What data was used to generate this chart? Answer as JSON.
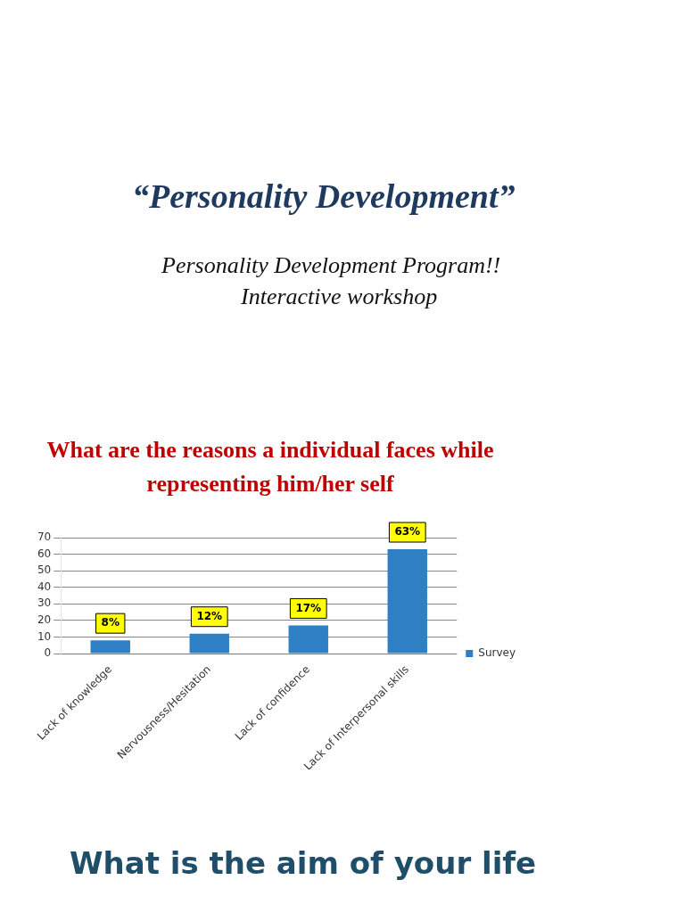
{
  "chart_data": {
    "type": "bar",
    "title": "What are the reasons a individual faces while representing him/her self",
    "categories": [
      "Lack of knowledge",
      "Nervousness/Hesitation",
      "Lack of confidence",
      "Lack of Interpersonal skills"
    ],
    "series": [
      {
        "name": "Survey",
        "color": "#2e7fc3",
        "values": [
          8,
          12,
          17,
          63
        ]
      }
    ],
    "value_labels": [
      "8%",
      "12%",
      "17%",
      "63%"
    ],
    "ylim": [
      0,
      70
    ],
    "yticks": [
      0,
      10,
      20,
      30,
      40,
      50,
      60,
      70
    ],
    "grid": "y",
    "legend": "right",
    "annotations": [
      "“Personality Development”",
      "Personality Development Program!!",
      "Interactive workshop",
      "What is the aim of your life"
    ]
  }
}
